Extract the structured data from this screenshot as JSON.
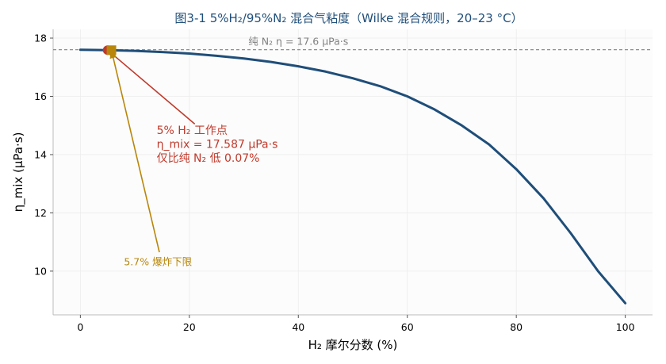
{
  "chart_data": {
    "type": "line",
    "title": "图3-1  5%H₂/95%N₂ 混合气粘度（Wilke 混合规则，20–23 °C）",
    "xlabel": "H₂ 摩尔分数 (%)",
    "ylabel": "η_mix (μPa·s)",
    "xlim": [
      -5,
      105
    ],
    "ylim": [
      8.5,
      18.3
    ],
    "xticks": [
      0,
      20,
      40,
      60,
      80,
      100
    ],
    "yticks": [
      10,
      12,
      14,
      16,
      18
    ],
    "grid": true,
    "series": [
      {
        "color": "#1f4e79",
        "x": [
          0,
          5,
          10,
          15,
          20,
          25,
          30,
          35,
          40,
          45,
          50,
          55,
          60,
          65,
          70,
          75,
          80,
          85,
          90,
          95,
          100
        ],
        "y": [
          17.6,
          17.587,
          17.56,
          17.52,
          17.47,
          17.39,
          17.3,
          17.18,
          17.03,
          16.85,
          16.62,
          16.35,
          16.0,
          15.55,
          15.0,
          14.35,
          13.5,
          12.5,
          11.3,
          10.0,
          8.9
        ]
      }
    ],
    "reference_line": {
      "y": 17.6,
      "label": "纯 N₂  η = 17.6 μPa·s",
      "color": "#808080"
    },
    "markers": [
      {
        "x": 5,
        "y": 17.587,
        "shape": "circle",
        "color": "#c0392b"
      },
      {
        "x": 5.7,
        "y": 17.585,
        "shape": "square",
        "color": "#b8860b"
      }
    ],
    "annotations": [
      {
        "lines": [
          "5% H₂ 工作点",
          "η_mix = 17.587 μPa·s",
          "仅比纯 N₂ 低 0.07%"
        ],
        "color": "#c0392b",
        "point": {
          "x": 5,
          "y": 17.587
        },
        "text_anchor_data": {
          "x": 14,
          "y": 14.7
        },
        "arrow_tail_data": {
          "x": 21,
          "y": 15.05
        }
      },
      {
        "lines": [
          "5.7% 爆炸下限"
        ],
        "color": "#b8860b",
        "point": {
          "x": 5.7,
          "y": 17.585
        },
        "text_anchor_data": {
          "x": 8,
          "y": 10.2
        },
        "arrow_tail_data": {
          "x": 14.5,
          "y": 10.65
        }
      }
    ]
  }
}
